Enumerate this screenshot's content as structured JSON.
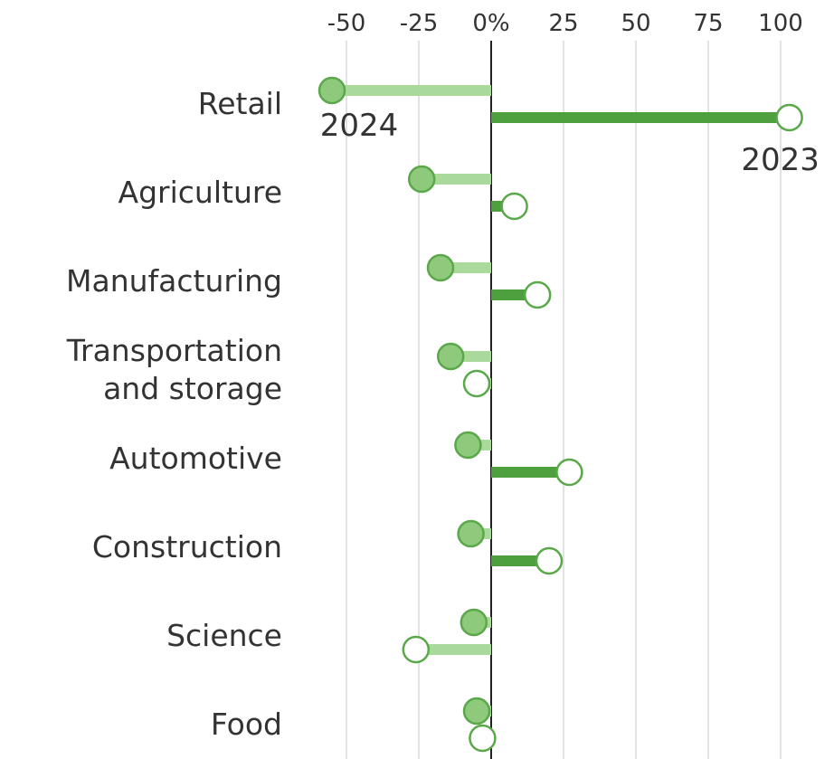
{
  "chart_data": {
    "type": "lollipop",
    "categories": [
      "Retail",
      "Agriculture",
      "Manufacturing",
      "Transportation and storage",
      "Automotive",
      "Construction",
      "Science",
      "Food"
    ],
    "series": [
      {
        "name": "2024",
        "color": "#8fca7c",
        "values": [
          -55,
          -24,
          -17.5,
          -14,
          -8,
          -7,
          -6,
          -5
        ]
      },
      {
        "name": "2023",
        "color": "#ffffff",
        "values": [
          103,
          8,
          16,
          -5,
          27,
          20,
          -26,
          -3
        ]
      }
    ],
    "positive_color": "#4e9f3d",
    "negative_color": "#a9d99b",
    "dot_stroke": "#5aa84a",
    "xlim": [
      -60,
      110
    ],
    "xticks": [
      -50,
      -25,
      {
        "value": 0,
        "label": "0%"
      },
      25,
      50,
      75,
      100
    ],
    "grid": true
  }
}
